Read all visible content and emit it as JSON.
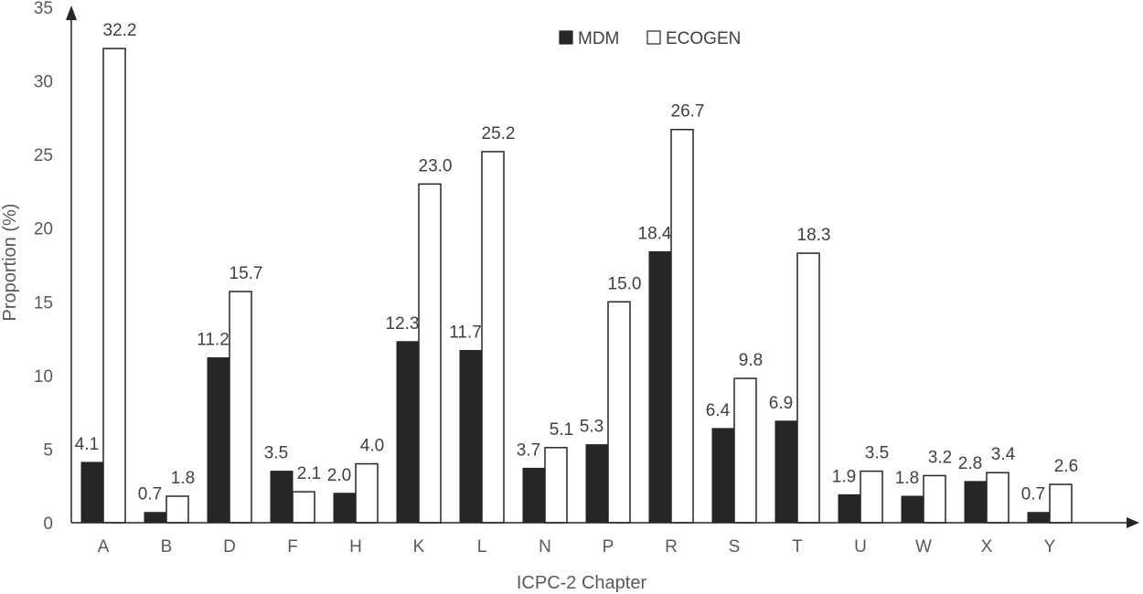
{
  "chart_data": {
    "type": "bar",
    "title": "",
    "xlabel": "ICPC-2 Chapter",
    "ylabel": "Proportion (%)",
    "ylim": [
      0,
      35
    ],
    "yticks": [
      0,
      5,
      10,
      15,
      20,
      25,
      30,
      35
    ],
    "grid": false,
    "legend_position": "top-center",
    "categories": [
      "A",
      "B",
      "D",
      "F",
      "H",
      "K",
      "L",
      "N",
      "P",
      "R",
      "S",
      "T",
      "U",
      "W",
      "X",
      "Y"
    ],
    "series": [
      {
        "name": "MDM",
        "color": "#262626",
        "values": [
          4.1,
          0.7,
          11.2,
          3.5,
          2.0,
          12.3,
          11.7,
          3.7,
          5.3,
          18.4,
          6.4,
          6.9,
          1.9,
          1.8,
          2.8,
          0.7
        ],
        "labels": [
          "4.1",
          "0.7",
          "11.2",
          "3.5",
          "2.0",
          "12.3",
          "11.7",
          "3.7",
          "5.3",
          "18.4",
          "6.4",
          "6.9",
          "1.9",
          "1.8",
          "2.8",
          "0.7"
        ]
      },
      {
        "name": "ECOGEN",
        "color": "#ffffff",
        "values": [
          32.2,
          1.8,
          15.7,
          2.1,
          4.0,
          23.0,
          25.2,
          5.1,
          15.0,
          26.7,
          9.8,
          18.3,
          3.5,
          3.2,
          3.4,
          2.6
        ],
        "labels": [
          "32.2",
          "1.8",
          "15.7",
          "2.1",
          "4.0",
          "23.0",
          "25.2",
          "5.1",
          "15.0",
          "26.7",
          "9.8",
          "18.3",
          "3.5",
          "3.2",
          "3.4",
          "2.6"
        ]
      }
    ]
  }
}
